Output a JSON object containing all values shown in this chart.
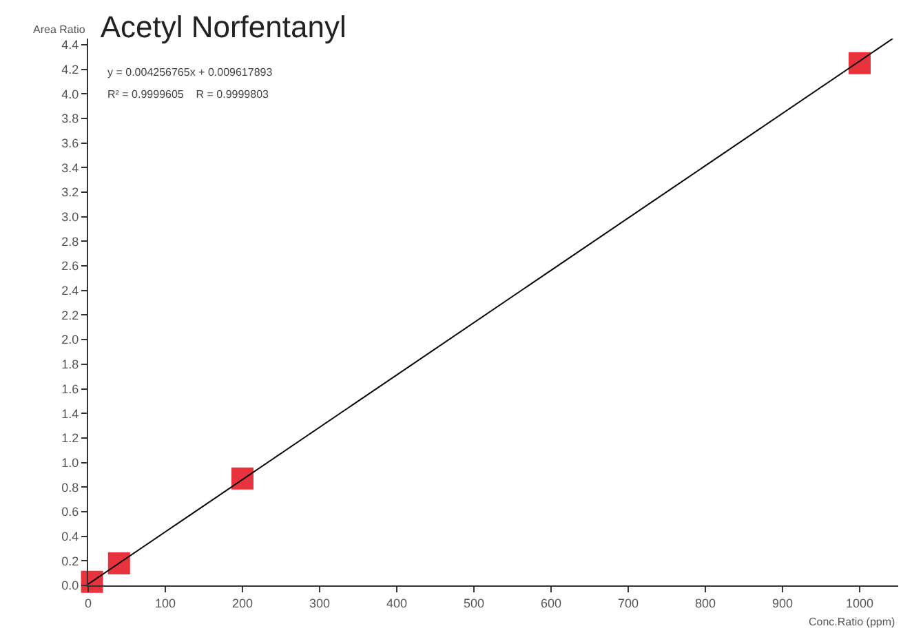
{
  "chart_data": {
    "type": "scatter",
    "title": "Acetyl Norfentanyl",
    "xlabel": "Conc.Ratio (ppm)",
    "ylabel": "Area Ratio",
    "annotations": [
      "y = 0.004256765x + 0.009617893",
      "R² = 0.9999605    R = 0.9999803"
    ],
    "series": [
      {
        "color": "#e8323c",
        "marker": "square",
        "x": [
          5,
          40,
          200,
          1000
        ],
        "values": [
          0.03,
          0.18,
          0.87,
          4.25
        ]
      },
      {
        "type": "line",
        "color": "#000000",
        "marker": "none",
        "line_style": "solid",
        "x": [
          0,
          1043
        ],
        "values": [
          0.01,
          4.45
        ]
      }
    ],
    "xlim": [
      0,
      1050
    ],
    "xticks": [
      0,
      100,
      200,
      300,
      400,
      500,
      600,
      700,
      800,
      900,
      1000
    ],
    "ylim": [
      0,
      4.45
    ],
    "yticks": [
      {
        "value": 0,
        "label": "0.0"
      },
      0.2,
      0.4,
      0.6,
      0.8,
      {
        "value": 1,
        "label": "1.0"
      },
      1.2,
      1.4,
      1.6,
      1.8,
      {
        "value": 2,
        "label": "2.0"
      },
      2.2,
      2.4,
      2.6,
      2.8,
      {
        "value": 3,
        "label": "3.0"
      },
      3.2,
      3.4,
      3.6,
      3.8,
      {
        "value": 4,
        "label": "4.0"
      },
      4.2,
      4.4
    ],
    "legend": false
  }
}
